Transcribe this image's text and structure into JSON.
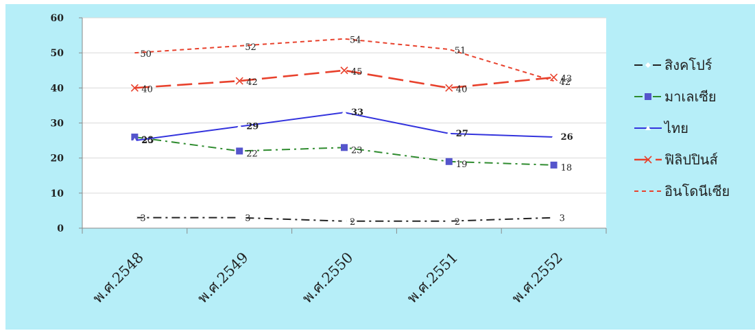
{
  "chart_data": {
    "type": "line",
    "title": "",
    "xlabel": "",
    "ylabel": "",
    "categories": [
      "พ.ศ.2548",
      "พ.ศ.2549",
      "พ.ศ.2550",
      "พ.ศ.2551",
      "พ.ศ.2552"
    ],
    "ylim": [
      0,
      60
    ],
    "yticks": [
      0,
      10,
      20,
      30,
      40,
      50,
      60
    ],
    "grid": true,
    "legend": "right",
    "colors": {
      "outer_background": "#b6eef8",
      "plot_background": "#ffffff",
      "gridline": "#d9d9d9",
      "axis": "#8a8a8a"
    },
    "series": [
      {
        "name": "สิงคโปร์",
        "values": [
          3,
          3,
          2,
          2,
          3
        ],
        "color": "#222222",
        "style": "dashdot",
        "marker": "diamond"
      },
      {
        "name": "มาเลเซีย",
        "values": [
          26,
          22,
          23,
          19,
          18
        ],
        "color": "#2e8b2e",
        "style": "dashdot",
        "marker": "square"
      },
      {
        "name": "ไทย",
        "values": [
          25,
          29,
          33,
          27,
          26
        ],
        "color": "#3333dd",
        "style": "solid",
        "marker": "triangle"
      },
      {
        "name": "ฟิลิปปินส์",
        "values": [
          40,
          42,
          45,
          40,
          43
        ],
        "color": "#e8412c",
        "style": "longdash",
        "marker": "x"
      },
      {
        "name": "อินโดนีเซีย",
        "values": [
          50,
          52,
          54,
          51,
          42
        ],
        "color": "#e8412c",
        "style": "shortdash",
        "marker": "none"
      }
    ]
  }
}
